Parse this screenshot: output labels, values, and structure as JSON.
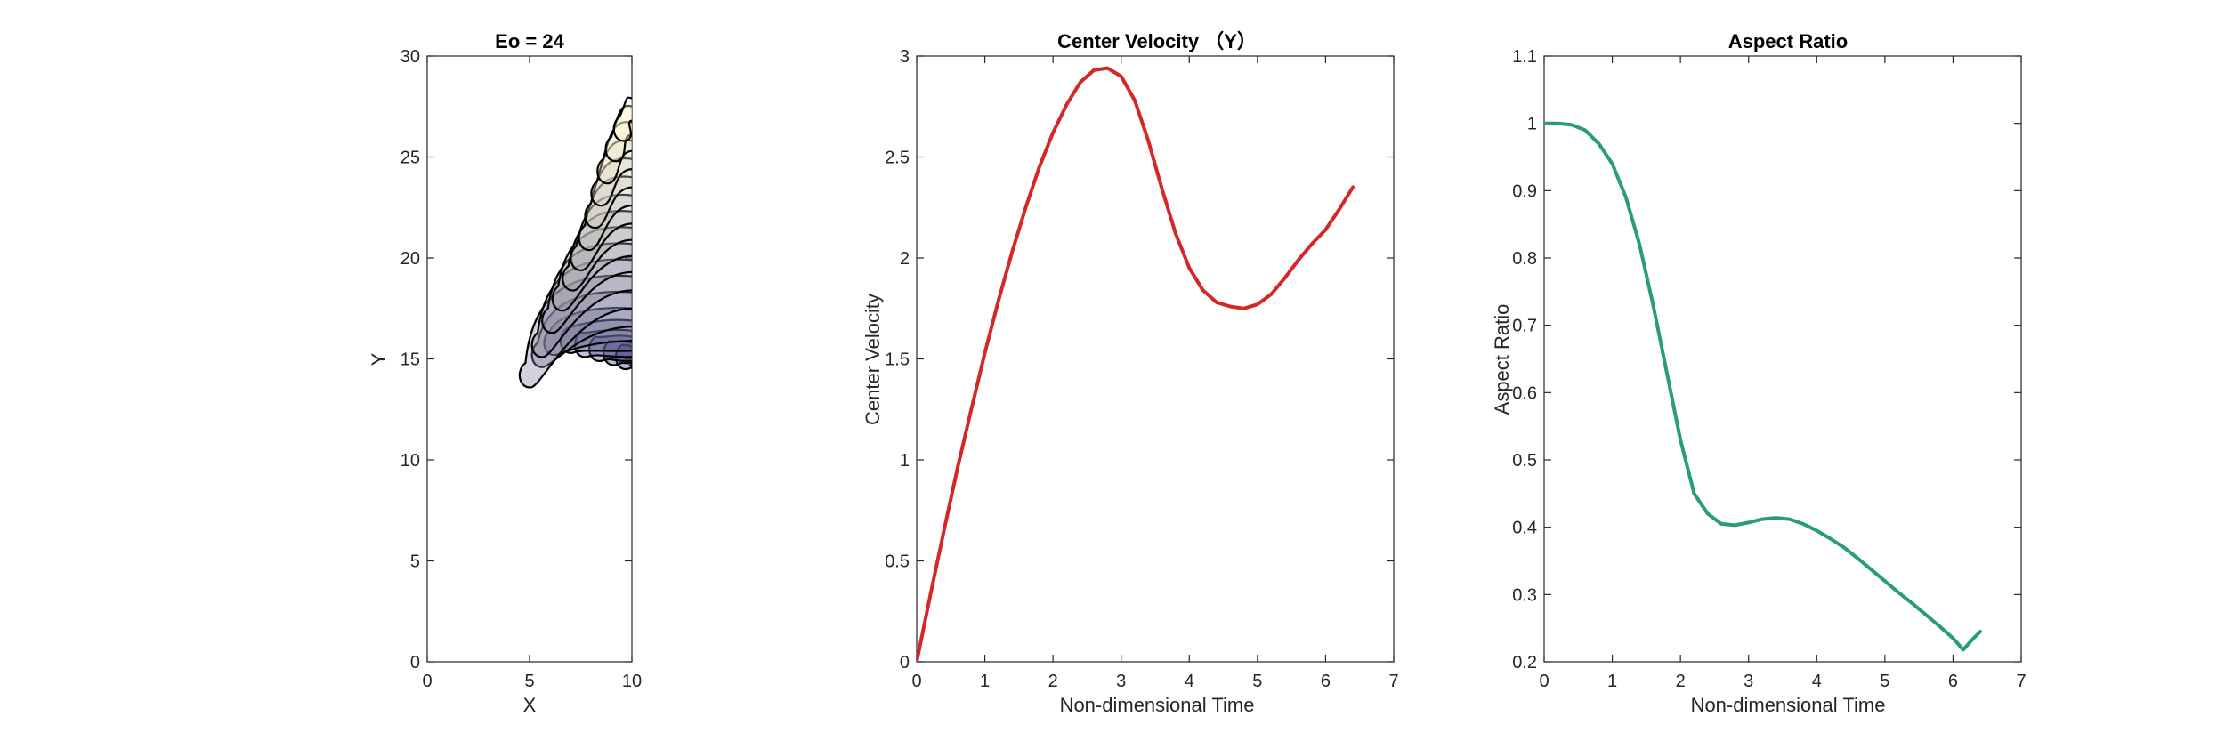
{
  "chart_data": [
    {
      "type": "line",
      "subtype": "contour-overlay",
      "title": "Eo = 24",
      "xlabel": "X",
      "ylabel": "Y",
      "xlim": [
        0,
        10
      ],
      "ylim": [
        0,
        30
      ],
      "xticks": [
        0,
        5,
        10
      ],
      "yticks": [
        0,
        5,
        10,
        15,
        20,
        25,
        30
      ],
      "grid": false,
      "colors": {
        "outline": "#000000",
        "fill_early": "#2a2a7a",
        "fill_late": "#fffacd"
      },
      "contours": [
        {
          "t": 0.0,
          "y_bottom": 14.7,
          "y_top": 15.6,
          "x_tip": 9.3,
          "y_tip": 15.3
        },
        {
          "t": 0.4,
          "y_bottom": 14.8,
          "y_top": 15.8,
          "x_tip": 8.7,
          "y_tip": 15.5
        },
        {
          "t": 0.8,
          "y_bottom": 14.9,
          "y_top": 16.1,
          "x_tip": 8.0,
          "y_tip": 15.7
        },
        {
          "t": 1.2,
          "y_bottom": 15.1,
          "y_top": 16.4,
          "x_tip": 7.3,
          "y_tip": 15.9
        },
        {
          "t": 1.6,
          "y_bottom": 15.4,
          "y_top": 16.9,
          "x_tip": 6.6,
          "y_tip": 16.1
        },
        {
          "t": 2.0,
          "y_bottom": 15.9,
          "y_top": 17.5,
          "x_tip": 5.8,
          "y_tip": 16.0
        },
        {
          "t": 2.4,
          "y_bottom": 16.6,
          "y_top": 18.3,
          "x_tip": 5.2,
          "y_tip": 15.4
        },
        {
          "t": 2.8,
          "y_bottom": 17.5,
          "y_top": 19.1,
          "x_tip": 4.6,
          "y_tip": 14.4
        },
        {
          "t": 3.2,
          "y_bottom": 18.4,
          "y_top": 19.9,
          "x_tip": 5.2,
          "y_tip": 15.9
        },
        {
          "t": 3.6,
          "y_bottom": 19.3,
          "y_top": 20.7,
          "x_tip": 5.7,
          "y_tip": 17.1
        },
        {
          "t": 4.0,
          "y_bottom": 20.1,
          "y_top": 21.5,
          "x_tip": 6.2,
          "y_tip": 18.2
        },
        {
          "t": 4.4,
          "y_bottom": 20.9,
          "y_top": 22.3,
          "x_tip": 6.7,
          "y_tip": 19.2
        },
        {
          "t": 4.8,
          "y_bottom": 21.7,
          "y_top": 23.1,
          "x_tip": 7.1,
          "y_tip": 20.2
        },
        {
          "t": 5.2,
          "y_bottom": 22.6,
          "y_top": 24.0,
          "x_tip": 7.5,
          "y_tip": 21.2
        },
        {
          "t": 5.6,
          "y_bottom": 23.5,
          "y_top": 24.9,
          "x_tip": 7.8,
          "y_tip": 22.3
        },
        {
          "t": 6.0,
          "y_bottom": 24.4,
          "y_top": 25.8,
          "x_tip": 8.1,
          "y_tip": 23.4
        },
        {
          "t": 6.4,
          "y_bottom": 25.3,
          "y_top": 26.7,
          "x_tip": 8.4,
          "y_tip": 24.5
        },
        {
          "t": 6.8,
          "y_bottom": 26.1,
          "y_top": 27.5,
          "x_tip": 8.8,
          "y_tip": 25.6
        },
        {
          "t": 7.2,
          "y_bottom": 26.8,
          "y_top": 27.9,
          "x_tip": 9.2,
          "y_tip": 26.6
        }
      ]
    },
    {
      "type": "line",
      "title": "Center Velocity （Y）",
      "xlabel": "Non-dimensional Time",
      "ylabel": "Center Velocity",
      "xlim": [
        0,
        7
      ],
      "ylim": [
        0,
        3
      ],
      "xticks": [
        0,
        1,
        2,
        3,
        4,
        5,
        6,
        7
      ],
      "yticks": [
        0,
        0.5,
        1,
        1.5,
        2,
        2.5,
        3
      ],
      "ytick_labels": [
        "0",
        "0.5",
        "1",
        "1.5",
        "2",
        "2.5",
        "3"
      ],
      "grid": false,
      "series": [
        {
          "color": "#d62728",
          "x": [
            0,
            0.2,
            0.4,
            0.6,
            0.8,
            1.0,
            1.2,
            1.4,
            1.6,
            1.8,
            2.0,
            2.2,
            2.4,
            2.6,
            2.8,
            3.0,
            3.2,
            3.4,
            3.6,
            3.8,
            4.0,
            4.2,
            4.4,
            4.6,
            4.8,
            5.0,
            5.2,
            5.4,
            5.6,
            5.8,
            6.0,
            6.2,
            6.4
          ],
          "y": [
            0,
            0.33,
            0.65,
            0.96,
            1.25,
            1.53,
            1.79,
            2.03,
            2.25,
            2.45,
            2.62,
            2.76,
            2.87,
            2.93,
            2.94,
            2.9,
            2.78,
            2.58,
            2.34,
            2.12,
            1.95,
            1.84,
            1.78,
            1.76,
            1.75,
            1.77,
            1.82,
            1.9,
            1.99,
            2.07,
            2.14,
            2.24,
            2.35
          ]
        }
      ]
    },
    {
      "type": "line",
      "title": "Aspect Ratio",
      "xlabel": "Non-dimensional Time",
      "ylabel": "Aspect Ratio",
      "xlim": [
        0,
        7
      ],
      "ylim": [
        0.2,
        1.1
      ],
      "xticks": [
        0,
        1,
        2,
        3,
        4,
        5,
        6,
        7
      ],
      "yticks": [
        0.2,
        0.3,
        0.4,
        0.5,
        0.6,
        0.7,
        0.8,
        0.9,
        1,
        1.1
      ],
      "ytick_labels": [
        "0.2",
        "0.3",
        "0.4",
        "0.5",
        "0.6",
        "0.7",
        "0.8",
        "0.9",
        "1",
        "1.1"
      ],
      "grid": false,
      "series": [
        {
          "color": "#2a9d78",
          "x": [
            0,
            0.2,
            0.4,
            0.6,
            0.8,
            1.0,
            1.2,
            1.4,
            1.6,
            1.8,
            2.0,
            2.2,
            2.4,
            2.6,
            2.8,
            3.0,
            3.2,
            3.4,
            3.6,
            3.8,
            4.0,
            4.2,
            4.4,
            4.6,
            4.8,
            5.0,
            5.2,
            5.4,
            5.6,
            5.8,
            6.0,
            6.15,
            6.3,
            6.4
          ],
          "y": [
            1.0,
            1.0,
            0.998,
            0.99,
            0.97,
            0.94,
            0.89,
            0.82,
            0.73,
            0.63,
            0.53,
            0.45,
            0.42,
            0.405,
            0.403,
            0.407,
            0.412,
            0.414,
            0.412,
            0.405,
            0.395,
            0.383,
            0.37,
            0.354,
            0.337,
            0.32,
            0.303,
            0.287,
            0.27,
            0.253,
            0.235,
            0.218,
            0.235,
            0.245
          ]
        }
      ]
    }
  ]
}
